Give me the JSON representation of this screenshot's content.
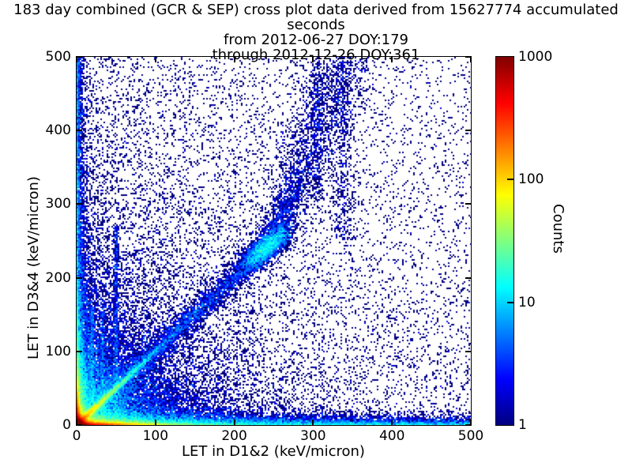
{
  "title": {
    "line1": "183 day combined (GCR & SEP) cross plot data derived from 15627774 accumulated seconds",
    "line2": "from 2012-06-27 DOY:179",
    "line3": "through 2012-12-26 DOY:361"
  },
  "chart_data": {
    "type": "heatmap",
    "title": "183 day combined (GCR & SEP) cross plot data derived from 15627774 accumulated seconds from 2012-06-27 DOY:179 through 2012-12-26 DOY:361",
    "xlabel": "LET in D1&2 (keV/micron)",
    "ylabel": "LET in D3&4 (keV/micron)",
    "xlim": [
      0,
      500
    ],
    "ylim": [
      0,
      500
    ],
    "xticks": [
      0,
      100,
      200,
      300,
      400,
      500
    ],
    "yticks": [
      0,
      100,
      200,
      300,
      400,
      500
    ],
    "grid": false,
    "bin_size_px": 2,
    "point_color_single": "#000080",
    "colorbar": {
      "label": "Counts",
      "scale": "log",
      "min": 1,
      "max": 1000,
      "ticks": [
        1,
        10,
        100,
        1000
      ],
      "position": "right",
      "colormap": "jet",
      "stops": [
        {
          "pos": 0.0,
          "color": "#000080"
        },
        {
          "pos": 0.125,
          "color": "#0000ff"
        },
        {
          "pos": 0.375,
          "color": "#00ffff"
        },
        {
          "pos": 0.5,
          "color": "#80ff80"
        },
        {
          "pos": 0.625,
          "color": "#ffff00"
        },
        {
          "pos": 0.875,
          "color": "#ff0000"
        },
        {
          "pos": 1.0,
          "color": "#800000"
        }
      ]
    },
    "density_model": {
      "seed": 7,
      "note": "2D histogram of LET cross-plot events; counts log-mapped 1-1000 onto jet colormap. Hot core at origin (~1000+ counts), hot bands hugging both axes, bright diagonal y=x fading by ~80 keV/micron, blue diagonal band with dense blob near (238,238) curving up to x~340 at y=500, faint vertical streaks at x~20,33,50,305,338, sparse navy background denser toward lower-left.",
      "components": [
        {
          "name": "origin-core",
          "n": 30000,
          "x": {
            "dist": "exp",
            "scale": 4
          },
          "y": {
            "dist": "exp",
            "scale": 4
          }
        },
        {
          "name": "bottom-edge-hot",
          "n": 15000,
          "x": {
            "dist": "exp",
            "scale": 30
          },
          "y": {
            "dist": "exp",
            "scale": 2
          }
        },
        {
          "name": "bottom-band",
          "n": 8000,
          "x": {
            "dist": "exp",
            "scale": 110
          },
          "y": {
            "dist": "exp",
            "scale": 7
          }
        },
        {
          "name": "bottom-edge-far",
          "n": 6000,
          "x": {
            "dist": "uniform",
            "a": 0,
            "b": 500
          },
          "y": {
            "dist": "exp",
            "scale": 4
          }
        },
        {
          "name": "left-edge-hot",
          "n": 9000,
          "x": {
            "dist": "exp",
            "scale": 2
          },
          "y": {
            "dist": "exp",
            "scale": 22
          }
        },
        {
          "name": "left-band",
          "n": 5000,
          "x": {
            "dist": "exp",
            "scale": 7
          },
          "y": {
            "dist": "exp",
            "scale": 100
          }
        },
        {
          "name": "left-edge-far",
          "n": 3000,
          "x": {
            "dist": "exp",
            "scale": 3
          },
          "y": {
            "dist": "uniform",
            "a": 0,
            "b": 500
          }
        },
        {
          "name": "lower-left-cloud",
          "n": 16000,
          "x": {
            "dist": "exp",
            "scale": 55
          },
          "y": {
            "dist": "exp",
            "scale": 55
          }
        },
        {
          "name": "diagonal-bright",
          "n": 8000,
          "diag": {
            "t": {
              "dist": "exp",
              "scale": 28
            },
            "sigma": 2.2
          }
        },
        {
          "name": "diagonal-band",
          "n": 7000,
          "diag": {
            "t": {
              "dist": "blobmix",
              "a": 0,
              "b": 265,
              "mu": 238,
              "s": 13,
              "w": 0.33
            },
            "sigma": 8
          }
        },
        {
          "name": "diagonal-upper",
          "n": 2600,
          "diagUpper": {
            "t0": 250,
            "t1": 500,
            "pow": 1.5,
            "slope": 0.36,
            "sigma0": 10,
            "sigmaK": 0.06,
            "ysigma": 7
          }
        },
        {
          "name": "streak-x20",
          "n": 450,
          "x": {
            "dist": "gauss",
            "mu": 20,
            "s": 1.3
          },
          "y": {
            "dist": "uniform",
            "a": 0,
            "b": 160
          }
        },
        {
          "name": "streak-x33",
          "n": 350,
          "x": {
            "dist": "gauss",
            "mu": 33,
            "s": 1.3
          },
          "y": {
            "dist": "uniform",
            "a": 0,
            "b": 160
          }
        },
        {
          "name": "streak-x50",
          "n": 700,
          "x": {
            "dist": "gauss",
            "mu": 50,
            "s": 1.6
          },
          "y": {
            "dist": "uniform",
            "a": 0,
            "b": 270
          }
        },
        {
          "name": "streak-x305",
          "n": 280,
          "x": {
            "dist": "gauss",
            "mu": 305,
            "s": 4
          },
          "y": {
            "dist": "uniform",
            "a": 300,
            "b": 500
          }
        },
        {
          "name": "upper-streak-x338",
          "n": 500,
          "x": {
            "dist": "gauss",
            "mu": 338,
            "s": 7
          },
          "y": {
            "dist": "uniform",
            "a": 250,
            "b": 500
          }
        },
        {
          "name": "background",
          "n": 9000,
          "x": {
            "dist": "expmix",
            "scale": 170,
            "uw": 0.25
          },
          "y": {
            "dist": "expmix",
            "scale": 240,
            "uw": 0.25
          }
        },
        {
          "name": "sparse-uniform",
          "n": 3000,
          "x": {
            "dist": "uniform",
            "a": 0,
            "b": 500
          },
          "y": {
            "dist": "uniform",
            "a": 0,
            "b": 500
          }
        }
      ]
    }
  }
}
